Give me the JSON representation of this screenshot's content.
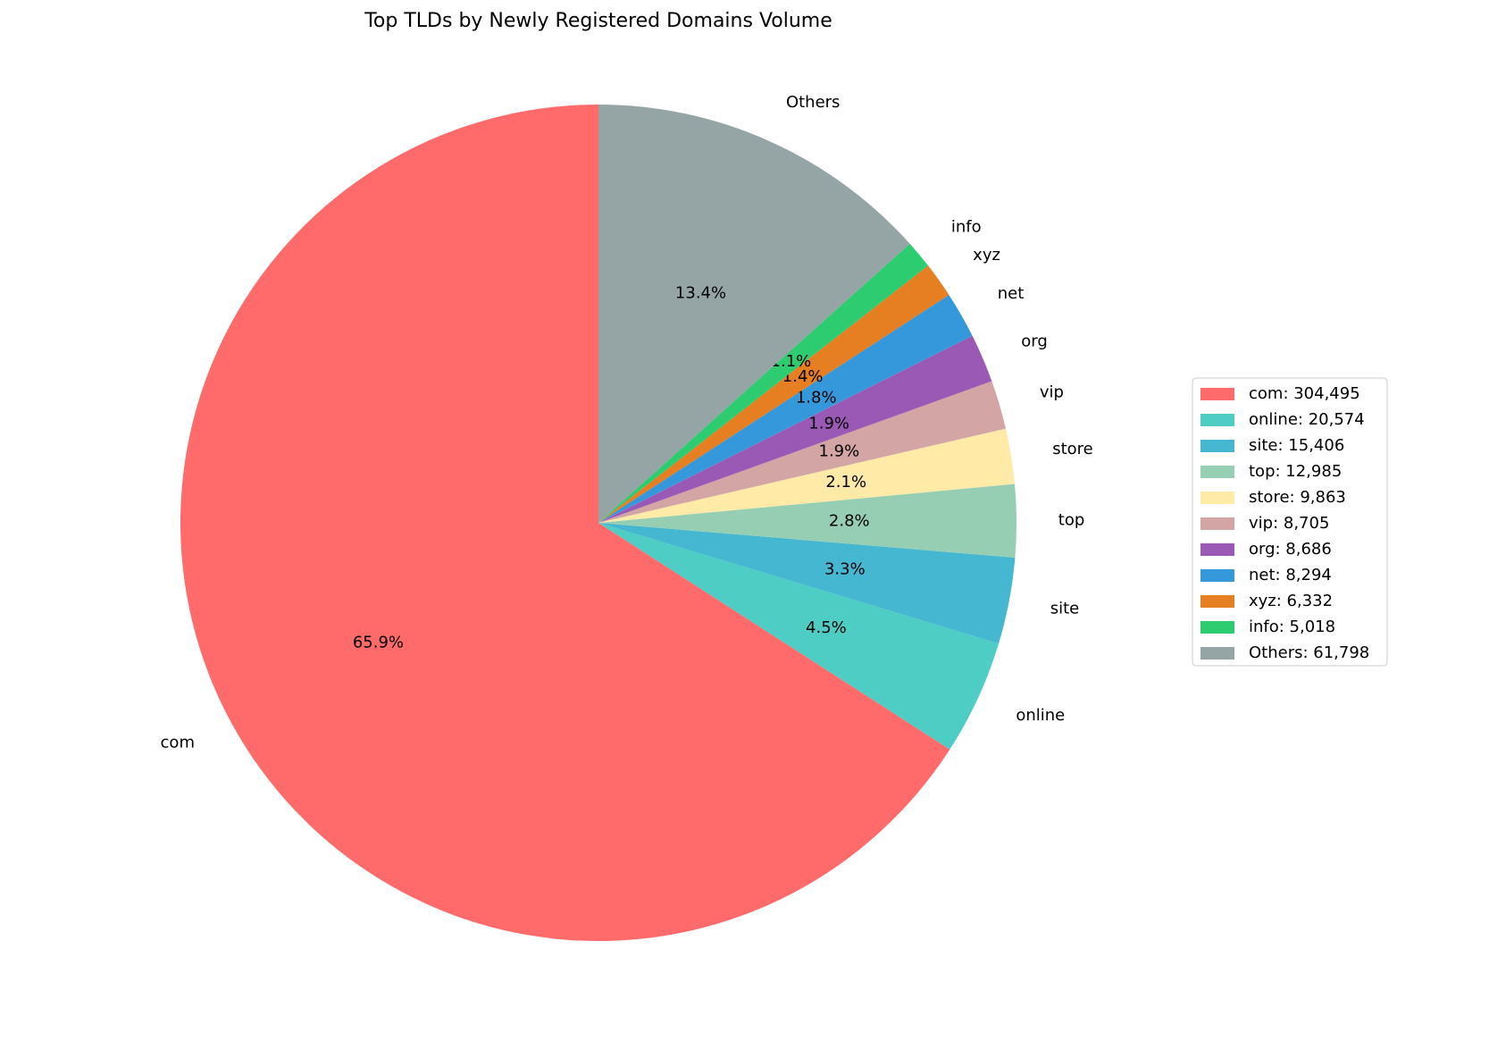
{
  "chart_data": {
    "type": "pie",
    "title": "Top TLDs by Newly Registered Domains Volume",
    "categories": [
      "com",
      "online",
      "site",
      "top",
      "store",
      "vip",
      "org",
      "net",
      "xyz",
      "info",
      "Others"
    ],
    "values": [
      304495,
      20574,
      15406,
      12985,
      9863,
      8705,
      8686,
      8294,
      6332,
      5018,
      61798
    ],
    "percent_labels": [
      "65.9%",
      "4.5%",
      "3.3%",
      "2.8%",
      "2.1%",
      "1.9%",
      "1.9%",
      "1.8%",
      "1.4%",
      "1.1%",
      "13.4%"
    ],
    "legend_labels": [
      "com: 304,495",
      "online: 20,574",
      "site: 15,406",
      "top: 12,985",
      "store: 9,863",
      "vip: 8,705",
      "org: 8,686",
      "net: 8,294",
      "xyz: 6,332",
      "info: 5,018",
      "Others: 61,798"
    ],
    "colors": [
      "#ff6b6b",
      "#4ecdc4",
      "#45b7d1",
      "#96ceb4",
      "#ffeaa7",
      "#d4a5a5",
      "#9b59b6",
      "#3498db",
      "#e67e22",
      "#2ecc71",
      "#95a5a6"
    ],
    "legend_position": "right"
  }
}
